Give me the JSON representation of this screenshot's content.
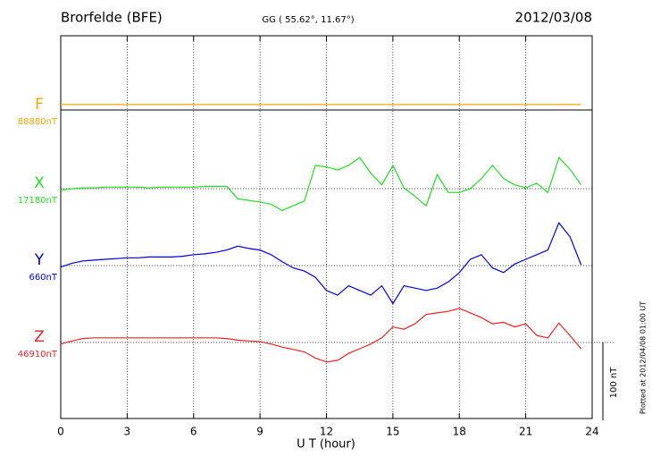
{
  "chart_data": {
    "type": "line",
    "title": "Brorfelde (BFE)",
    "subtitle": "GG ( 55.62°,  11.67°)",
    "date": "2012/03/08",
    "xlabel": "U T (hour)",
    "footnote": "Plotted at 2012/04/08 01:00 UT",
    "xlim": [
      0,
      24
    ],
    "xticks": [
      0,
      3,
      6,
      9,
      12,
      15,
      18,
      21,
      24
    ],
    "grid": true,
    "scale_bar": {
      "value": 100,
      "label": "100 nT"
    },
    "x": [
      0,
      0.5,
      1,
      1.5,
      2,
      2.5,
      3,
      3.5,
      4,
      4.5,
      5,
      5.5,
      6,
      6.5,
      7,
      7.5,
      8,
      8.5,
      9,
      9.5,
      10,
      10.5,
      11,
      11.5,
      12,
      12.5,
      13,
      13.5,
      14,
      14.5,
      15,
      15.5,
      16,
      16.5,
      17,
      17.5,
      18,
      18.5,
      19,
      19.5,
      20,
      20.5,
      21,
      21.5,
      22,
      22.5,
      23,
      23.5
    ],
    "series": [
      {
        "name": "F",
        "baseline_label": "88880nT",
        "color": "#f0a800",
        "values": [
          7,
          7,
          7,
          7,
          7,
          7,
          7,
          7,
          7,
          7,
          7,
          7,
          7,
          7,
          7,
          7,
          7,
          7,
          7,
          7,
          7,
          7,
          7,
          7,
          7,
          7,
          7,
          7,
          7,
          7,
          7,
          7,
          7,
          7,
          7,
          7,
          7,
          7,
          7,
          7,
          7,
          7,
          7,
          7,
          7,
          7,
          7,
          7
        ]
      },
      {
        "name": "X",
        "baseline_label": "17180nT",
        "color": "#22e022",
        "values": [
          -2,
          0,
          1,
          1,
          2,
          2,
          2,
          2,
          1,
          2,
          2,
          2,
          2,
          3,
          3,
          3,
          -13,
          -15,
          -17,
          -20,
          -28,
          -22,
          -16,
          30,
          28,
          24,
          30,
          40,
          20,
          5,
          30,
          1,
          -10,
          -22,
          18,
          -5,
          -5,
          0,
          13,
          30,
          13,
          5,
          1,
          7,
          -5,
          40,
          25,
          5
        ]
      },
      {
        "name": "Y",
        "baseline_label": "660nT",
        "color": "#0000dd",
        "values": [
          -2,
          3,
          6,
          7,
          8,
          9,
          10,
          10,
          11,
          11,
          11,
          12,
          14,
          15,
          17,
          20,
          25,
          22,
          20,
          14,
          5,
          -3,
          -7,
          -15,
          -32,
          -38,
          -26,
          -32,
          -38,
          -26,
          -49,
          -26,
          -29,
          -32,
          -29,
          -21,
          -9,
          8,
          14,
          -3,
          -9,
          2,
          8,
          14,
          20,
          55,
          37,
          1
        ]
      },
      {
        "name": "Z",
        "baseline_label": "46910nT",
        "color": "#ee2222",
        "values": [
          -2,
          2,
          5,
          6,
          6,
          6,
          6,
          6,
          6,
          6,
          6,
          6,
          6,
          6,
          6,
          5,
          3,
          2,
          1,
          -2,
          -6,
          -9,
          -12,
          -20,
          -25,
          -23,
          -14,
          -8,
          -2,
          6,
          20,
          17,
          24,
          36,
          38,
          40,
          44,
          38,
          32,
          24,
          26,
          20,
          24,
          9,
          6,
          25,
          9,
          -8
        ]
      }
    ]
  }
}
